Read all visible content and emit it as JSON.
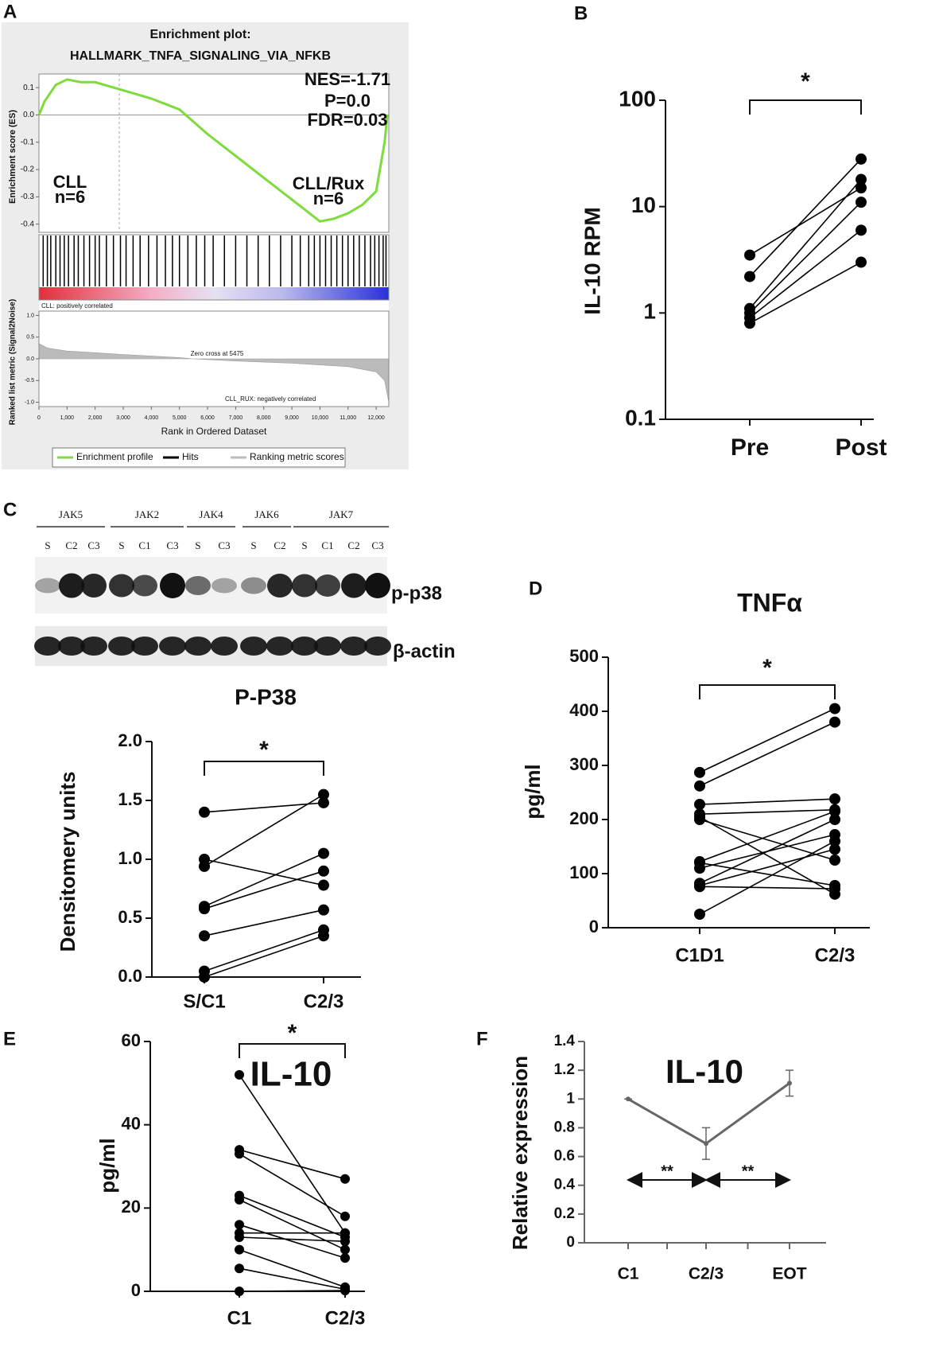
{
  "panel_labels": [
    "A",
    "B",
    "C",
    "D",
    "E",
    "F"
  ],
  "blot": {
    "groups": [
      "JAK5",
      "JAK2",
      "JAK4",
      "JAK6",
      "JAK7"
    ],
    "lanes": [
      [
        "S",
        "C2",
        "C3"
      ],
      [
        "S",
        "C1",
        "C3"
      ],
      [
        "S",
        "C3"
      ],
      [
        "S",
        "C2"
      ],
      [
        "S",
        "C1",
        "C2",
        "C3"
      ]
    ],
    "bands": [
      "p-p38",
      "β-actin"
    ]
  },
  "chart_data": [
    {
      "type": "gsea",
      "title": "Enrichment plot:",
      "subtitle": "HALLMARK_TNFA_SIGNALING_VIA_NFKB",
      "ylabel": "Enrichment score (ES)",
      "annotations": [
        "NES=-1.71",
        "P=0.0",
        "FDR=0.03",
        "CLL",
        "n=6",
        "CLL/Rux",
        "n=6"
      ],
      "x": [
        0,
        200,
        600,
        1000,
        1500,
        2000,
        3000,
        4000,
        5000,
        6000,
        7000,
        8000,
        9000,
        10000,
        10500,
        11000,
        11500,
        12000,
        12300,
        12400
      ],
      "values": [
        0.0,
        0.05,
        0.11,
        0.13,
        0.12,
        0.12,
        0.09,
        0.06,
        0.02,
        -0.07,
        -0.15,
        -0.23,
        -0.31,
        -0.39,
        -0.38,
        -0.36,
        -0.33,
        -0.28,
        -0.1,
        0.0
      ],
      "hits": [
        150,
        300,
        420,
        600,
        750,
        900,
        1050,
        1250,
        1400,
        1600,
        1800,
        2000,
        2150,
        2400,
        2650,
        2900,
        3100,
        3350,
        3600,
        3900,
        4200,
        4500,
        4750,
        5000,
        5300,
        5600,
        5900,
        6200,
        6600,
        7000,
        7400,
        7800,
        8200,
        8600,
        9000,
        9300,
        9600,
        9800,
        10000,
        10200,
        10400,
        10600,
        10800,
        11000,
        11200,
        11400,
        11600,
        11800,
        11950,
        12100,
        12250,
        12350
      ],
      "xlim": [
        0,
        12450
      ],
      "ylim": [
        -0.43,
        0.15
      ],
      "yticks": [
        0.1,
        {
          "value": 0,
          "label": "0.0"
        },
        -0.1,
        -0.2,
        -0.3,
        -0.4
      ],
      "legend": [
        {
          "name": "Enrichment profile",
          "color": "#7ddc3c"
        },
        {
          "name": "Hits",
          "color": "#000000"
        },
        {
          "name": "Ranking metric scores",
          "color": "#bbbbbb"
        }
      ]
    },
    {
      "type": "area",
      "ylabel": "Ranked list metric (Signal2Noise)",
      "xlabel": "Rank in Ordered Dataset",
      "annotations": [
        "CLL: positively correlated",
        "Zero cross at 5475",
        "CLL_RUX: negatively correlated"
      ],
      "x": [
        0,
        300,
        1000,
        3000,
        5000,
        5475,
        7000,
        9000,
        11000,
        12000,
        12300,
        12450
      ],
      "values": [
        0.35,
        0.25,
        0.18,
        0.1,
        0.03,
        0,
        -0.05,
        -0.1,
        -0.18,
        -0.3,
        -0.5,
        -1.0
      ],
      "xlim": [
        0,
        12450
      ],
      "ylim": [
        -1.1,
        1.1
      ],
      "xticks": [
        0,
        {
          "value": 1000,
          "label": "1,000"
        },
        {
          "value": 2000,
          "label": "2,000"
        },
        {
          "value": 3000,
          "label": "3,000"
        },
        {
          "value": 4000,
          "label": "4,000"
        },
        {
          "value": 5000,
          "label": "5,000"
        },
        {
          "value": 6000,
          "label": "6,000"
        },
        {
          "value": 7000,
          "label": "7,000"
        },
        {
          "value": 8000,
          "label": "8,000"
        },
        {
          "value": 9000,
          "label": "9,000"
        },
        {
          "value": 10000,
          "label": "10,000"
        },
        {
          "value": 11000,
          "label": "11,000"
        },
        {
          "value": 12000,
          "label": "12,000"
        }
      ],
      "yticks": [
        {
          "value": 1,
          "label": "1.0"
        },
        0.5,
        {
          "value": 0,
          "label": "0.0"
        },
        -0.5,
        {
          "value": -1,
          "label": "-1.0"
        }
      ],
      "color": "#bbbbbb"
    },
    {
      "type": "paired",
      "ylabel": "IL-10 RPM",
      "categories": [
        "Pre",
        "Post"
      ],
      "pairs": [
        [
          3.5,
          15
        ],
        [
          2.2,
          28
        ],
        [
          1.1,
          18
        ],
        [
          1.0,
          11
        ],
        [
          0.9,
          6
        ],
        [
          0.8,
          3
        ]
      ],
      "log_scale": true,
      "ylim": [
        0.1,
        100
      ],
      "yticks": [
        0.1,
        1,
        10,
        100
      ],
      "significance": "*",
      "color": "#000000"
    },
    {
      "type": "paired",
      "title": "P-P38",
      "ylabel": "Densitomery units",
      "categories": [
        "S/C1",
        "C2/3"
      ],
      "pairs": [
        [
          1.4,
          1.48
        ],
        [
          1.0,
          0.78
        ],
        [
          0.94,
          1.55
        ],
        [
          0.6,
          1.05
        ],
        [
          0.58,
          0.9
        ],
        [
          0.35,
          0.57
        ],
        [
          0.05,
          0.4
        ],
        [
          0.0,
          0.35
        ]
      ],
      "ylim": [
        0,
        2
      ],
      "yticks": [
        {
          "value": 0,
          "label": "0.0"
        },
        0.5,
        {
          "value": 1,
          "label": "1.0"
        },
        1.5,
        {
          "value": 2,
          "label": "2.0"
        }
      ],
      "significance": "*",
      "color": "#000000"
    },
    {
      "type": "paired",
      "title": "TNFα",
      "ylabel": "pg/ml",
      "categories": [
        "C1D1",
        "C2/3"
      ],
      "pairs": [
        [
          287,
          405
        ],
        [
          262,
          380
        ],
        [
          228,
          238
        ],
        [
          210,
          218
        ],
        [
          205,
          62
        ],
        [
          122,
          215
        ],
        [
          110,
          172
        ],
        [
          82,
          200
        ],
        [
          78,
          145
        ],
        [
          76,
          72
        ],
        [
          25,
          160
        ],
        [
          200,
          125
        ],
        [
          120,
          78
        ]
      ],
      "ylim": [
        0,
        500
      ],
      "yticks": [
        0,
        100,
        200,
        300,
        400,
        500
      ],
      "significance": "*",
      "color": "#000000"
    },
    {
      "type": "paired",
      "title": "IL-10",
      "ylabel": "pg/ml",
      "categories": [
        "C1",
        "C2/3"
      ],
      "pairs": [
        [
          52,
          14
        ],
        [
          34,
          27
        ],
        [
          33,
          18
        ],
        [
          23,
          13
        ],
        [
          22,
          10
        ],
        [
          16,
          8
        ],
        [
          14,
          14
        ],
        [
          13,
          12
        ],
        [
          10,
          1
        ],
        [
          5.5,
          0.5
        ],
        [
          0,
          0.2
        ]
      ],
      "ylim": [
        0,
        60
      ],
      "yticks": [
        0,
        20,
        40,
        60
      ],
      "significance": "*",
      "color": "#000000"
    },
    {
      "type": "errorline",
      "title": "IL-10",
      "ylabel": "Relative expression",
      "categories": [
        "C1",
        "C2/3",
        "EOT"
      ],
      "values": [
        1.0,
        0.69,
        1.11
      ],
      "errors": [
        0,
        0.11,
        0.09
      ],
      "ylim": [
        0,
        1.4
      ],
      "yticks": [
        0,
        0.2,
        0.4,
        0.6,
        0.8,
        1,
        1.2,
        1.4
      ],
      "significance": [
        "**",
        "**"
      ],
      "color": "#666666"
    }
  ]
}
